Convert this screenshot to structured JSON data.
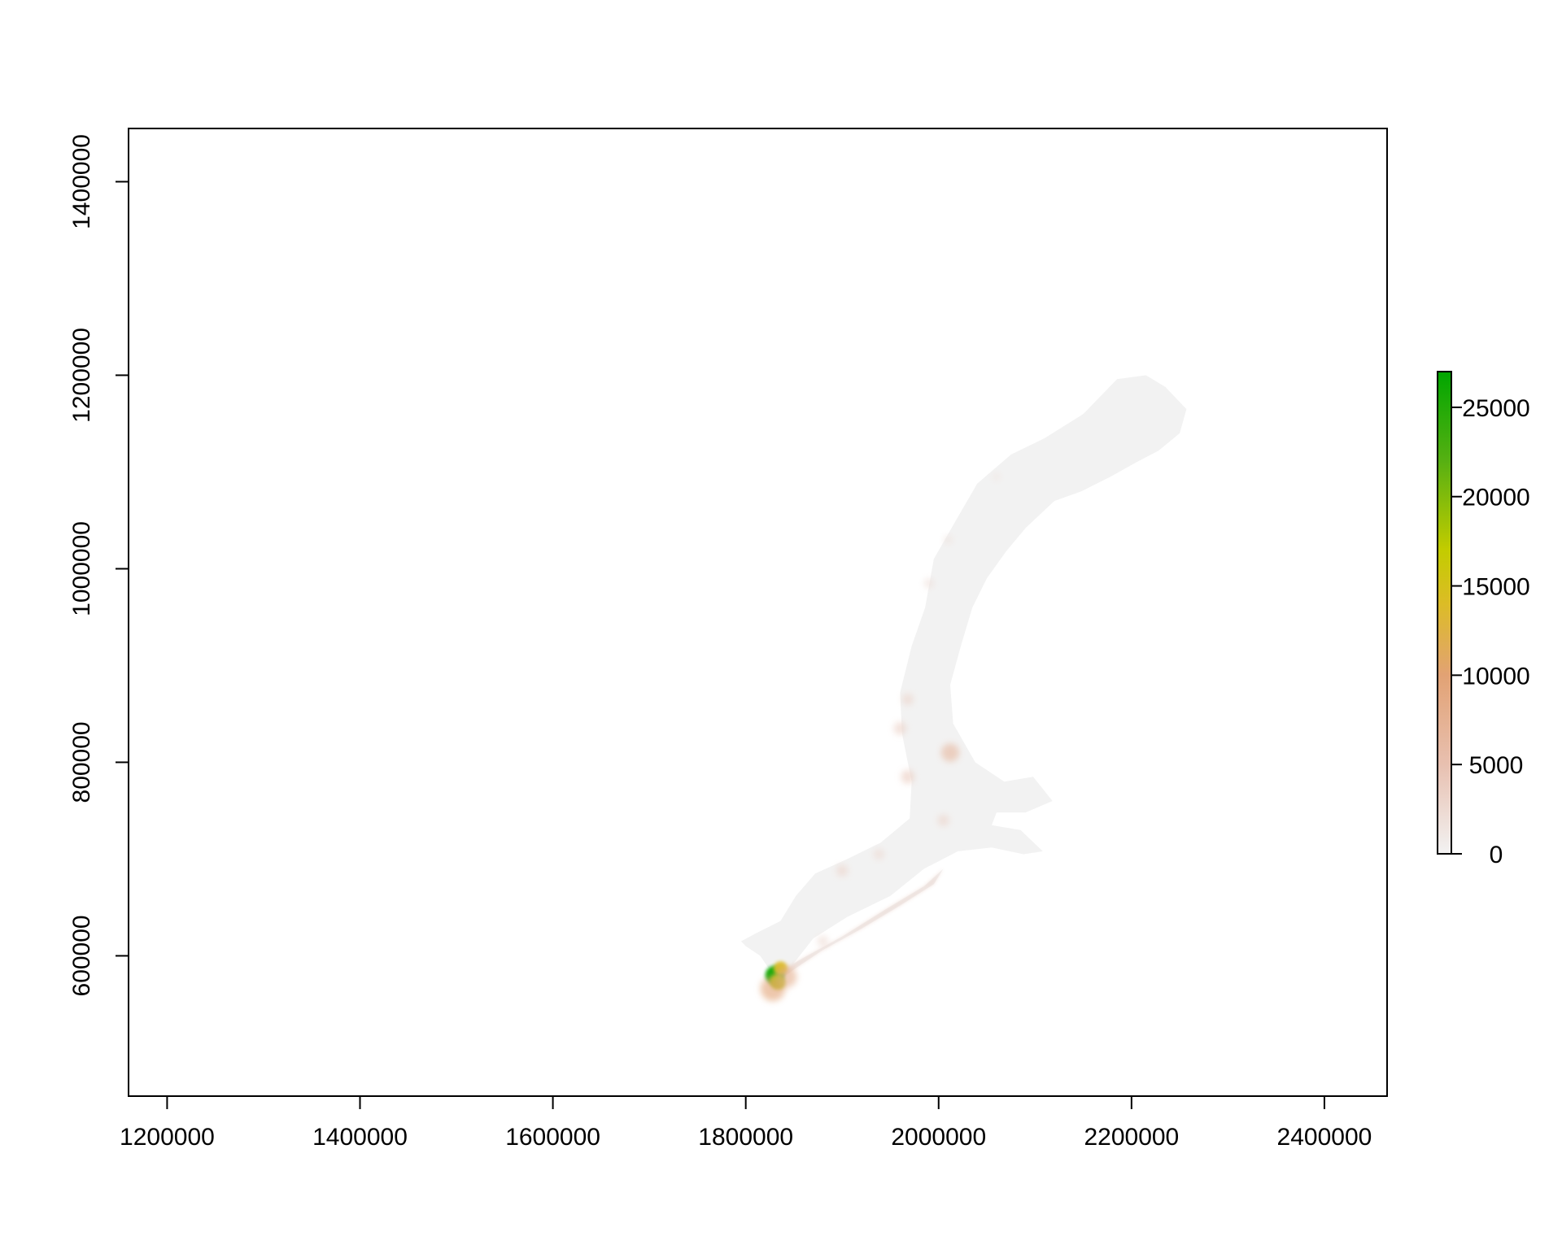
{
  "chart_data": {
    "type": "raster-map",
    "title": "",
    "xlabel": "",
    "ylabel": "",
    "xlim": [
      1160000,
      2465000
    ],
    "ylim": [
      455000,
      1455000
    ],
    "x_ticks": [
      1200000,
      1400000,
      1600000,
      1800000,
      2000000,
      2200000,
      2400000
    ],
    "x_tick_labels": [
      "1200000",
      "1400000",
      "1600000",
      "1800000",
      "2000000",
      "2200000",
      "2400000"
    ],
    "y_ticks": [
      600000,
      800000,
      1000000,
      1200000,
      1400000
    ],
    "y_tick_labels": [
      "600000",
      "800000",
      "1000000",
      "1200000",
      "1400000"
    ],
    "raster": {
      "outline": [
        [
          1795000,
          615000
        ],
        [
          1812000,
          624000
        ],
        [
          1836000,
          636000
        ],
        [
          1852000,
          662000
        ],
        [
          1872000,
          685000
        ],
        [
          1905000,
          700000
        ],
        [
          1940000,
          717000
        ],
        [
          1970000,
          742000
        ],
        [
          1972000,
          780000
        ],
        [
          1962000,
          830000
        ],
        [
          1960000,
          872000
        ],
        [
          1972000,
          920000
        ],
        [
          1986000,
          960000
        ],
        [
          1995000,
          1010000
        ],
        [
          2015000,
          1045000
        ],
        [
          2040000,
          1088000
        ],
        [
          2075000,
          1118000
        ],
        [
          2110000,
          1135000
        ],
        [
          2150000,
          1160000
        ],
        [
          2185000,
          1196000
        ],
        [
          2215000,
          1200000
        ],
        [
          2235000,
          1188000
        ],
        [
          2257000,
          1165000
        ],
        [
          2250000,
          1140000
        ],
        [
          2228000,
          1122000
        ],
        [
          2205000,
          1110000
        ],
        [
          2178000,
          1095000
        ],
        [
          2148000,
          1080000
        ],
        [
          2120000,
          1070000
        ],
        [
          2090000,
          1042000
        ],
        [
          2070000,
          1018000
        ],
        [
          2050000,
          990000
        ],
        [
          2035000,
          960000
        ],
        [
          2023000,
          920000
        ],
        [
          2012000,
          880000
        ],
        [
          2015000,
          840000
        ],
        [
          2038000,
          800000
        ],
        [
          2068000,
          780000
        ],
        [
          2098000,
          785000
        ],
        [
          2118000,
          760000
        ],
        [
          2090000,
          748000
        ],
        [
          2060000,
          748000
        ],
        [
          2055000,
          735000
        ],
        [
          2085000,
          730000
        ],
        [
          2108000,
          708000
        ],
        [
          2088000,
          705000
        ],
        [
          2055000,
          712000
        ],
        [
          2020000,
          708000
        ],
        [
          1985000,
          690000
        ],
        [
          1950000,
          662000
        ],
        [
          1905000,
          640000
        ],
        [
          1870000,
          618000
        ],
        [
          1848000,
          590000
        ],
        [
          1830000,
          578000
        ],
        [
          1815000,
          600000
        ],
        [
          1800000,
          610000
        ]
      ],
      "long_island": [
        [
          1832000,
          582000
        ],
        [
          1860000,
          598000
        ],
        [
          1900000,
          620000
        ],
        [
          1945000,
          648000
        ],
        [
          1985000,
          672000
        ],
        [
          2005000,
          690000
        ],
        [
          1995000,
          674000
        ],
        [
          1960000,
          652000
        ],
        [
          1920000,
          628000
        ],
        [
          1880000,
          606000
        ],
        [
          1850000,
          586000
        ],
        [
          1835000,
          575000
        ]
      ],
      "hotspots": [
        {
          "x": 1830000,
          "y": 580000,
          "value": 26000
        },
        {
          "x": 1833000,
          "y": 573000,
          "value": 18000
        },
        {
          "x": 1836000,
          "y": 587000,
          "value": 14000
        },
        {
          "x": 1828000,
          "y": 566000,
          "value": 10000
        },
        {
          "x": 1842000,
          "y": 578000,
          "value": 8000
        },
        {
          "x": 2012000,
          "y": 810000,
          "value": 6500
        },
        {
          "x": 1968000,
          "y": 785000,
          "value": 4000
        },
        {
          "x": 1960000,
          "y": 835000,
          "value": 3500
        },
        {
          "x": 1968000,
          "y": 865000,
          "value": 3000
        },
        {
          "x": 1900000,
          "y": 688000,
          "value": 3000
        },
        {
          "x": 2005000,
          "y": 740000,
          "value": 3000
        },
        {
          "x": 1880000,
          "y": 615000,
          "value": 2500
        },
        {
          "x": 1938000,
          "y": 705000,
          "value": 2500
        },
        {
          "x": 1990000,
          "y": 985000,
          "value": 2000
        },
        {
          "x": 2010000,
          "y": 1030000,
          "value": 1500
        },
        {
          "x": 2060000,
          "y": 1095000,
          "value": 1200
        }
      ]
    },
    "legend": {
      "type": "colorbar",
      "placement": "right",
      "min": 0,
      "max": 27000,
      "ticks": [
        0,
        5000,
        10000,
        15000,
        20000,
        25000
      ],
      "tick_labels": [
        "0",
        "5000",
        "10000",
        "15000",
        "20000",
        "25000"
      ],
      "colors": [
        "#f2f2f2",
        "#e8c0b0",
        "#e2a274",
        "#dcbc26",
        "#c3cc00",
        "#56b012",
        "#00a600"
      ],
      "color_stops": [
        0,
        5000,
        10000,
        14000,
        17000,
        22000,
        27000
      ]
    }
  }
}
